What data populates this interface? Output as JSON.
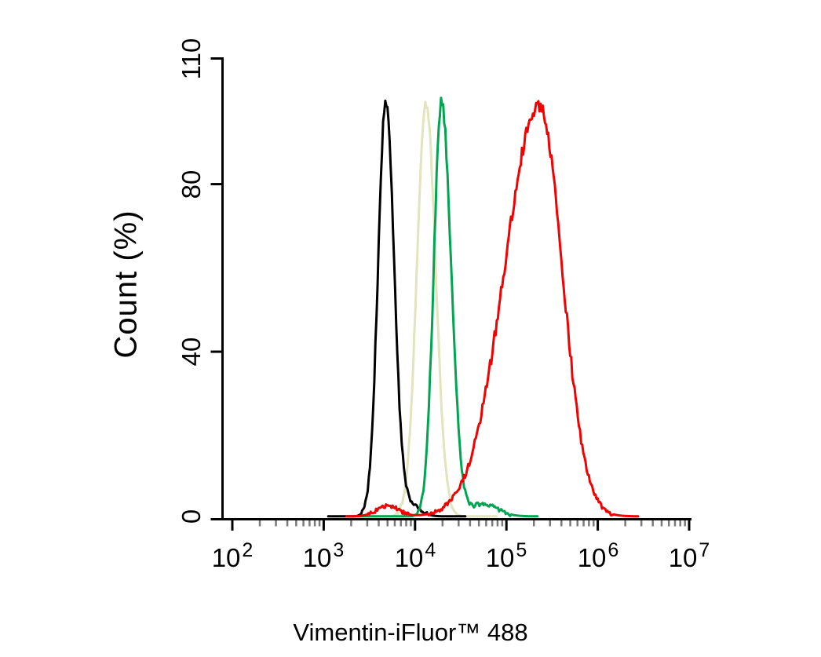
{
  "figure": {
    "background_color": "#ffffff",
    "axis_color": "#000000",
    "minor_tick_color": "#7a7a7a"
  },
  "chart_data": {
    "type": "line",
    "subtype": "flow-cytometry-overlay-histogram",
    "title": "",
    "xlabel": "Vimentin-iFluor™ 488",
    "ylabel": "Count (%)",
    "x_scale": "log10",
    "xlim_log10": [
      2,
      7
    ],
    "ylim": [
      0,
      110
    ],
    "grid": false,
    "legend": "none",
    "y_ticks": [
      {
        "label": "0",
        "value": 0
      },
      {
        "label": "40",
        "value": 40
      },
      {
        "label": "80",
        "value": 80
      },
      {
        "label": "110",
        "value": 110
      }
    ],
    "x_ticks": [
      {
        "base": "10",
        "exp": "2",
        "log10": 2
      },
      {
        "base": "10",
        "exp": "3",
        "log10": 3
      },
      {
        "base": "10",
        "exp": "4",
        "log10": 4
      },
      {
        "base": "10",
        "exp": "5",
        "log10": 5
      },
      {
        "base": "10",
        "exp": "6",
        "log10": 6
      },
      {
        "base": "10",
        "exp": "7",
        "log10": 7
      }
    ],
    "x_minor_ticks": "log-spaced minors at 2..9 within each decade from 10^2 to 10^7",
    "series": [
      {
        "name": "khaki",
        "color": "#e2e4bd",
        "peak_x": 13200,
        "peak_y": 99,
        "baseline": 0.7,
        "x_range_log10": [
          3.2,
          4.9
        ],
        "peaks": [
          {
            "center_log10": 4.12,
            "sigma_left": 0.1,
            "sigma_right": 0.105,
            "amplitude": 99
          }
        ]
      },
      {
        "name": "black",
        "color": "#000000",
        "peak_x": 4800,
        "peak_y": 99,
        "baseline": 0.7,
        "x_range_log10": [
          3.05,
          4.55
        ],
        "peaks": [
          {
            "center_log10": 3.68,
            "sigma_left": 0.085,
            "sigma_right": 0.09,
            "amplitude": 99
          },
          {
            "center_log10": 3.93,
            "sigma_left": 0.1,
            "sigma_right": 0.11,
            "amplitude": 3
          }
        ]
      },
      {
        "name": "green",
        "color": "#00a551",
        "peak_x": 19500,
        "peak_y": 99,
        "baseline": 0.7,
        "x_range_log10": [
          3.3,
          5.35
        ],
        "peaks": [
          {
            "center_log10": 4.29,
            "sigma_left": 0.085,
            "sigma_right": 0.105,
            "amplitude": 99
          },
          {
            "center_log10": 4.74,
            "sigma_left": 0.13,
            "sigma_right": 0.16,
            "amplitude": 3
          }
        ]
      },
      {
        "name": "red",
        "color": "#f40000",
        "peak_x": 230000,
        "peak_y": 98,
        "baseline": 0.7,
        "x_range_log10": [
          3.25,
          6.45
        ],
        "peaks": [
          {
            "center_log10": 5.36,
            "sigma_left": 0.38,
            "sigma_right": 0.25,
            "amplitude": 98
          },
          {
            "center_log10": 3.7,
            "sigma_left": 0.12,
            "sigma_right": 0.12,
            "amplitude": 2.5
          }
        ]
      }
    ]
  }
}
